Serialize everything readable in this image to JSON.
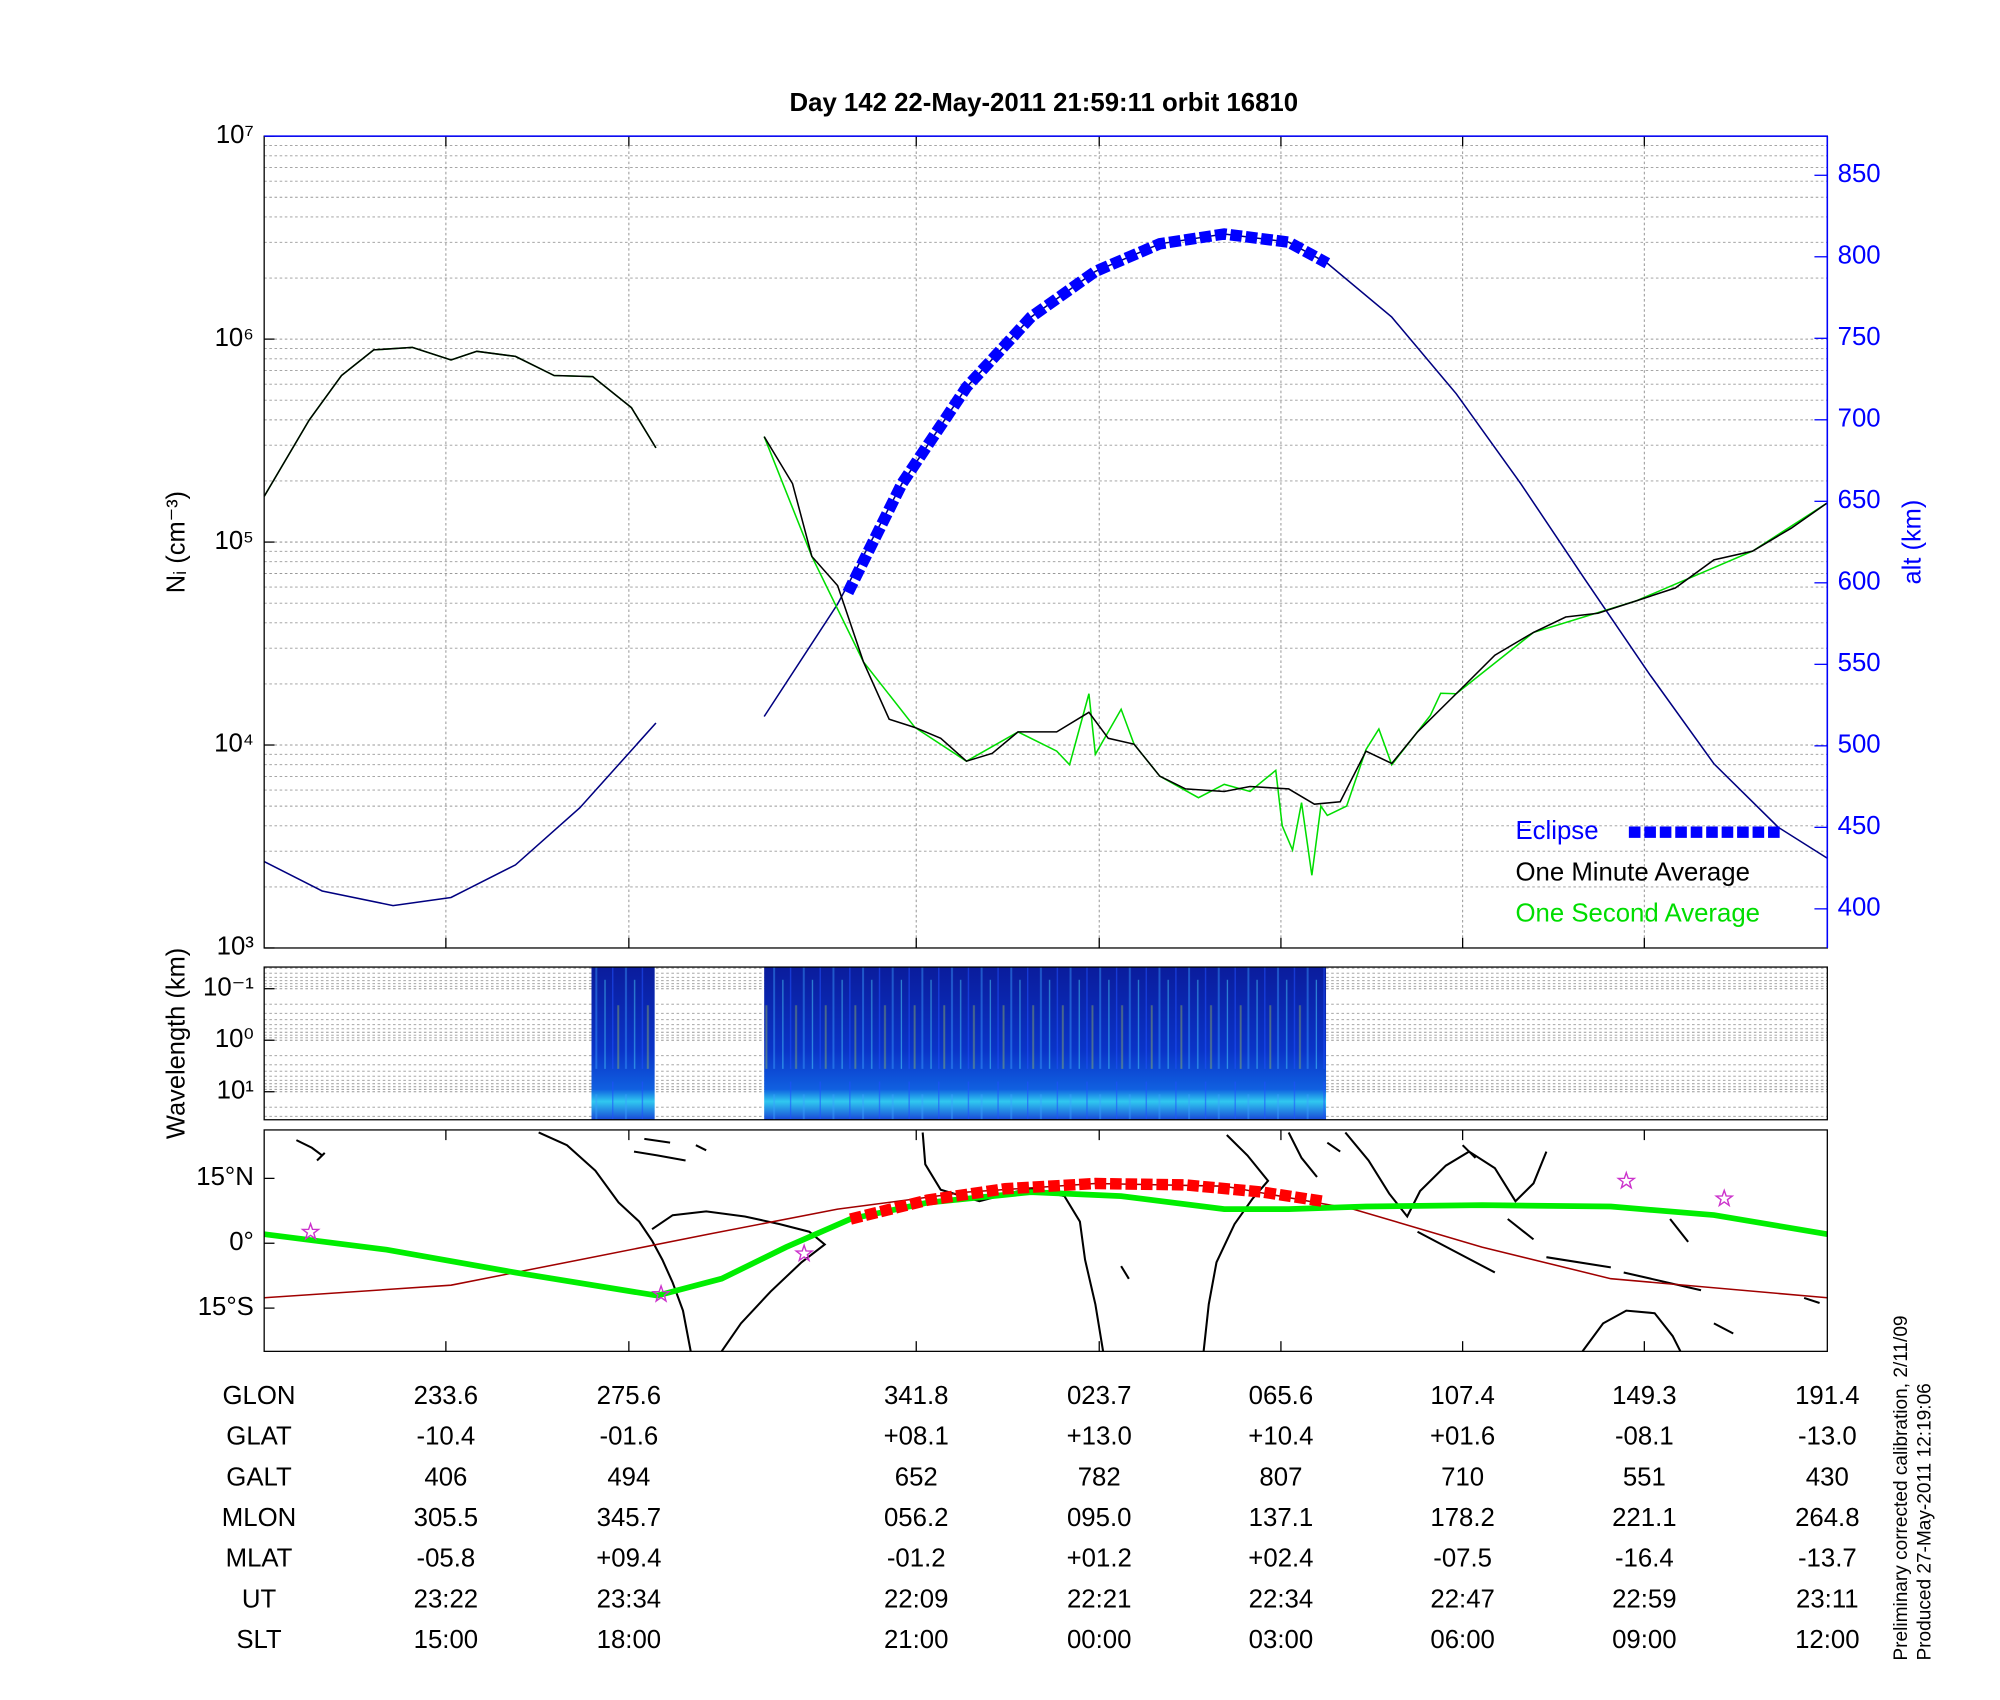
{
  "chart_data": [
    {
      "type": "line",
      "title": "Day 142  22-May-2011 21:59:11   orbit 16810",
      "ylabel": "Nᵢ (cm⁻³)",
      "y2label": "alt (km)",
      "xlim": [
        0,
        1213
      ],
      "xticks": [
        141,
        283,
        506,
        648,
        789,
        930,
        1071
      ],
      "log_y": true,
      "ylim": [
        1000,
        10000000
      ],
      "yticks": [
        {
          "value": 1000,
          "label": "10³"
        },
        {
          "value": 10000,
          "label": "10⁴"
        },
        {
          "value": 100000,
          "label": "10⁵"
        },
        {
          "value": 1000000,
          "label": "10⁶"
        },
        {
          "value": 10000000,
          "label": "10⁷"
        }
      ],
      "y2lim": [
        376,
        874
      ],
      "y2ticks": [
        400,
        450,
        500,
        550,
        600,
        650,
        700,
        750,
        800,
        850
      ],
      "y2_color": "#0000ff",
      "grid": true,
      "minor_grid": true,
      "legend": "lower right",
      "series": [
        {
          "name": "Eclipse",
          "color": "#0000ff",
          "axis": "y2",
          "style": "dashed",
          "x": [
            453,
            495,
            545,
            595,
            645,
            695,
            745,
            795,
            825
          ],
          "values": [
            594,
            661,
            720,
            763,
            791,
            808,
            814,
            809,
            796
          ]
        },
        {
          "name": "One Minute Average",
          "color": "#000000",
          "style": "thin",
          "x": [
            0,
            35,
            60,
            85,
            115,
            145,
            165,
            195,
            225,
            255,
            285,
            304,
            346,
            388,
            410,
            425,
            445,
            465,
            485,
            505,
            525,
            545,
            565,
            585,
            615,
            640,
            655,
            675,
            695,
            715,
            745,
            765,
            795,
            815,
            835,
            855,
            875,
            895,
            925,
            955,
            985,
            1010,
            1035,
            1065,
            1095,
            1125,
            1155,
            1185,
            1213
          ],
          "values": [
            168000,
            400000,
            662000,
            885000,
            910000,
            789000,
            871000,
            822000,
            662000,
            653000,
            459000,
            291000,
            null,
            331000,
            194000,
            85000,
            61000,
            25700,
            13400,
            12200,
            10800,
            8330,
            9100,
            11600,
            11600,
            14500,
            10800,
            10100,
            7020,
            6080,
            5900,
            6250,
            6080,
            5110,
            5250,
            9330,
            8110,
            11600,
            17900,
            27700,
            35900,
            42700,
            44600,
            51400,
            59400,
            81700,
            90300,
            117000,
            156000
          ]
        },
        {
          "name": "One Second Average",
          "color": "#00dd00",
          "style": "thin",
          "x": [
            0,
            35,
            60,
            85,
            115,
            145,
            165,
            195,
            225,
            255,
            285,
            304,
            346,
            388,
            425,
            465,
            505,
            545,
            585,
            615,
            625,
            640,
            645,
            665,
            675,
            695,
            725,
            745,
            765,
            785,
            790,
            798,
            805,
            813,
            820,
            825,
            840,
            855,
            865,
            875,
            905,
            913,
            925,
            985,
            1065,
            1155,
            1213
          ],
          "values": [
            168000,
            400000,
            662000,
            885000,
            910000,
            789000,
            871000,
            822000,
            662000,
            653000,
            459000,
            291000,
            null,
            331000,
            85000,
            25700,
            12200,
            8330,
            11600,
            9330,
            8000,
            17900,
            9000,
            15000,
            10100,
            7020,
            5500,
            6400,
            5900,
            7500,
            4000,
            3040,
            5200,
            2280,
            5000,
            4500,
            5000,
            9500,
            12000,
            8000,
            14000,
            18000,
            17900,
            35900,
            51400,
            90300,
            156000
          ]
        },
        {
          "color": "#000080",
          "axis": "y2",
          "style": "thin",
          "x": [
            0,
            45,
            100,
            145,
            195,
            245,
            304,
            346,
            388,
            445,
            495,
            545,
            595,
            645,
            695,
            745,
            795,
            825,
            875,
            925,
            975,
            1025,
            1075,
            1125,
            1175,
            1213
          ],
          "values": [
            429,
            411,
            402,
            407,
            427,
            462,
            514,
            null,
            518,
            587,
            661,
            720,
            763,
            791,
            808,
            814,
            809,
            796,
            763,
            716,
            661,
            602,
            544,
            489,
            450,
            431
          ]
        }
      ]
    },
    {
      "type": "heatmap",
      "ylabel": "Wavelength (km)",
      "xlim": [
        0,
        1213
      ],
      "log_y": true,
      "y_reversed": true,
      "ylim": [
        0.038,
        35
      ],
      "yticks": [
        {
          "value": 0.1,
          "label": "10⁻¹"
        },
        {
          "value": 1,
          "label": "10⁰"
        },
        {
          "value": 10,
          "label": "10¹"
        }
      ],
      "minor_grid": true,
      "segments": [
        {
          "start": 254,
          "end": 303
        },
        {
          "start": 388,
          "end": 824
        }
      ]
    },
    {
      "type": "map",
      "xlim": [
        0,
        1213
      ],
      "xticks": [
        141,
        283,
        506,
        648,
        789,
        930,
        1071
      ],
      "ylim": [
        -25,
        26.2
      ],
      "yticks": [
        {
          "value": 15,
          "label": "15°N"
        },
        {
          "value": 0,
          "label": "0°"
        },
        {
          "value": -15,
          "label": "15°S"
        }
      ],
      "series": [
        {
          "color": "#a00000",
          "style": "thin",
          "x": [
            0,
            145,
            245,
            345,
            445,
            545,
            645,
            745,
            845,
            945,
            1045,
            1213
          ],
          "values": [
            -12.6,
            -9.7,
            -3.8,
            2.1,
            7.9,
            11.8,
            13.8,
            13.2,
            7.9,
            -0.9,
            -8.2,
            -12.6
          ]
        },
        {
          "color": "#00ee00",
          "style": "thick",
          "x": [
            0,
            95,
            195,
            305,
            355,
            405,
            455,
            515,
            595,
            665,
            745,
            795,
            855,
            945,
            1045,
            1125,
            1213
          ],
          "values": [
            2.1,
            -1.5,
            -6.8,
            -12.1,
            -8.2,
            -0.9,
            5.6,
            9.4,
            11.8,
            10.9,
            7.9,
            7.9,
            8.5,
            8.8,
            8.5,
            6.5,
            2.1
          ]
        },
        {
          "color": "#ff0000",
          "style": "dashed",
          "x": [
            455,
            515,
            575,
            645,
            715,
            775,
            822
          ],
          "values": [
            5.6,
            10,
            12.6,
            13.8,
            13.5,
            11.8,
            9.7
          ]
        }
      ],
      "markers": {
        "color": "#cc33cc",
        "x": [
          36,
          308,
          419,
          1057,
          1133
        ],
        "values": [
          2.6,
          -11.8,
          -2.4,
          14.4,
          10.3
        ]
      }
    }
  ],
  "table": {
    "rows": [
      {
        "label": "GLON",
        "cells": [
          "233.6",
          "275.6",
          "341.8",
          "023.7",
          "065.6",
          "107.4",
          "149.3",
          "191.4"
        ]
      },
      {
        "label": "GLAT",
        "cells": [
          "-10.4",
          "-01.6",
          "+08.1",
          "+13.0",
          "+10.4",
          "+01.6",
          "-08.1",
          "-13.0"
        ]
      },
      {
        "label": "GALT",
        "cells": [
          "406",
          "494",
          "652",
          "782",
          "807",
          "710",
          "551",
          "430"
        ]
      },
      {
        "label": "MLON",
        "cells": [
          "305.5",
          "345.7",
          "056.2",
          "095.0",
          "137.1",
          "178.2",
          "221.1",
          "264.8"
        ]
      },
      {
        "label": "MLAT",
        "cells": [
          "-05.8",
          "+09.4",
          "-01.2",
          "+01.2",
          "+02.4",
          "-07.5",
          "-16.4",
          "-13.7"
        ]
      },
      {
        "label": "UT",
        "cells": [
          "23:22",
          "23:34",
          "22:09",
          "22:21",
          "22:34",
          "22:47",
          "22:59",
          "23:11"
        ]
      },
      {
        "label": "SLT",
        "cells": [
          "15:00",
          "18:00",
          "21:00",
          "00:00",
          "03:00",
          "06:00",
          "09:00",
          "12:00"
        ]
      }
    ]
  },
  "footnotes": [
    "Preliminary corrected calibration, 2/11/09",
    "Produced 27-May-2011 12:19:06"
  ]
}
